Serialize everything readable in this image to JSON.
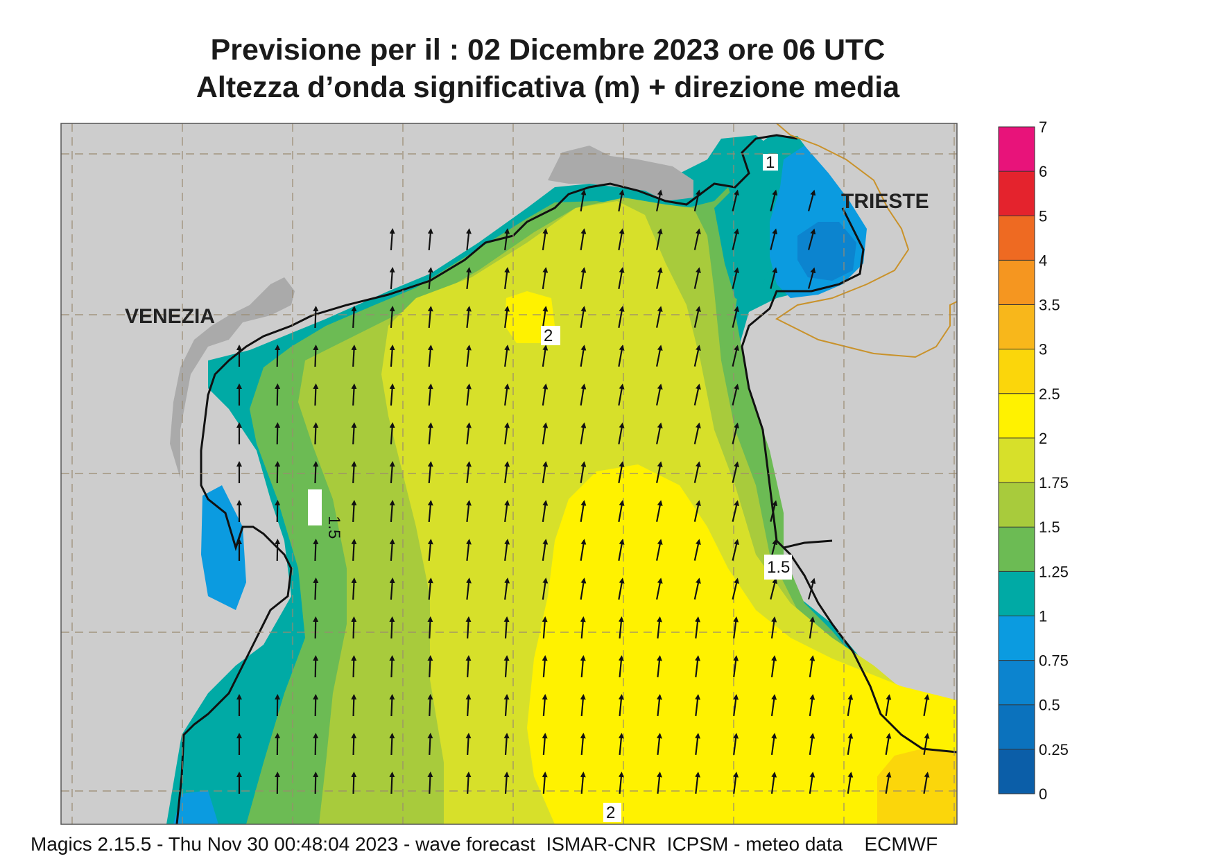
{
  "title": {
    "line1": "Previsione per il  :  02 Dicembre  2023   ore 06 UTC",
    "line2": "Altezza d’onda significativa (m) + direzione media"
  },
  "places": {
    "venezia": "VENEZIA",
    "trieste": "TRIESTE"
  },
  "contour_labels": [
    "2",
    "1.5",
    "1.5",
    "1",
    "2"
  ],
  "colorbar": {
    "ticks": [
      "7",
      "6",
      "5",
      "4",
      "3.5",
      "3",
      "2.5",
      "2",
      "1.75",
      "1.5",
      "1.25",
      "1",
      "0.75",
      "0.5",
      "0.25",
      "0"
    ],
    "colors": [
      "#e8137a",
      "#e4232d",
      "#ee6a22",
      "#f59620",
      "#f8b71b",
      "#fbd60b",
      "#fff200",
      "#d7e02a",
      "#a8cb3c",
      "#6cbb54",
      "#00aaa5",
      "#0b9be0",
      "#0c84cf",
      "#0b72bd",
      "#0b5ea8"
    ]
  },
  "colors": {
    "land": "#cdcdcd",
    "urban": "#aaaaaa",
    "grid": "#9a8a70",
    "border": "#c9922a"
  },
  "footer": "Magics 2.15.5 - Thu Nov 30 00:48:04 2023 - wave forecast  ISMAR-CNR  ICPSM - meteo data    ECMWF"
}
